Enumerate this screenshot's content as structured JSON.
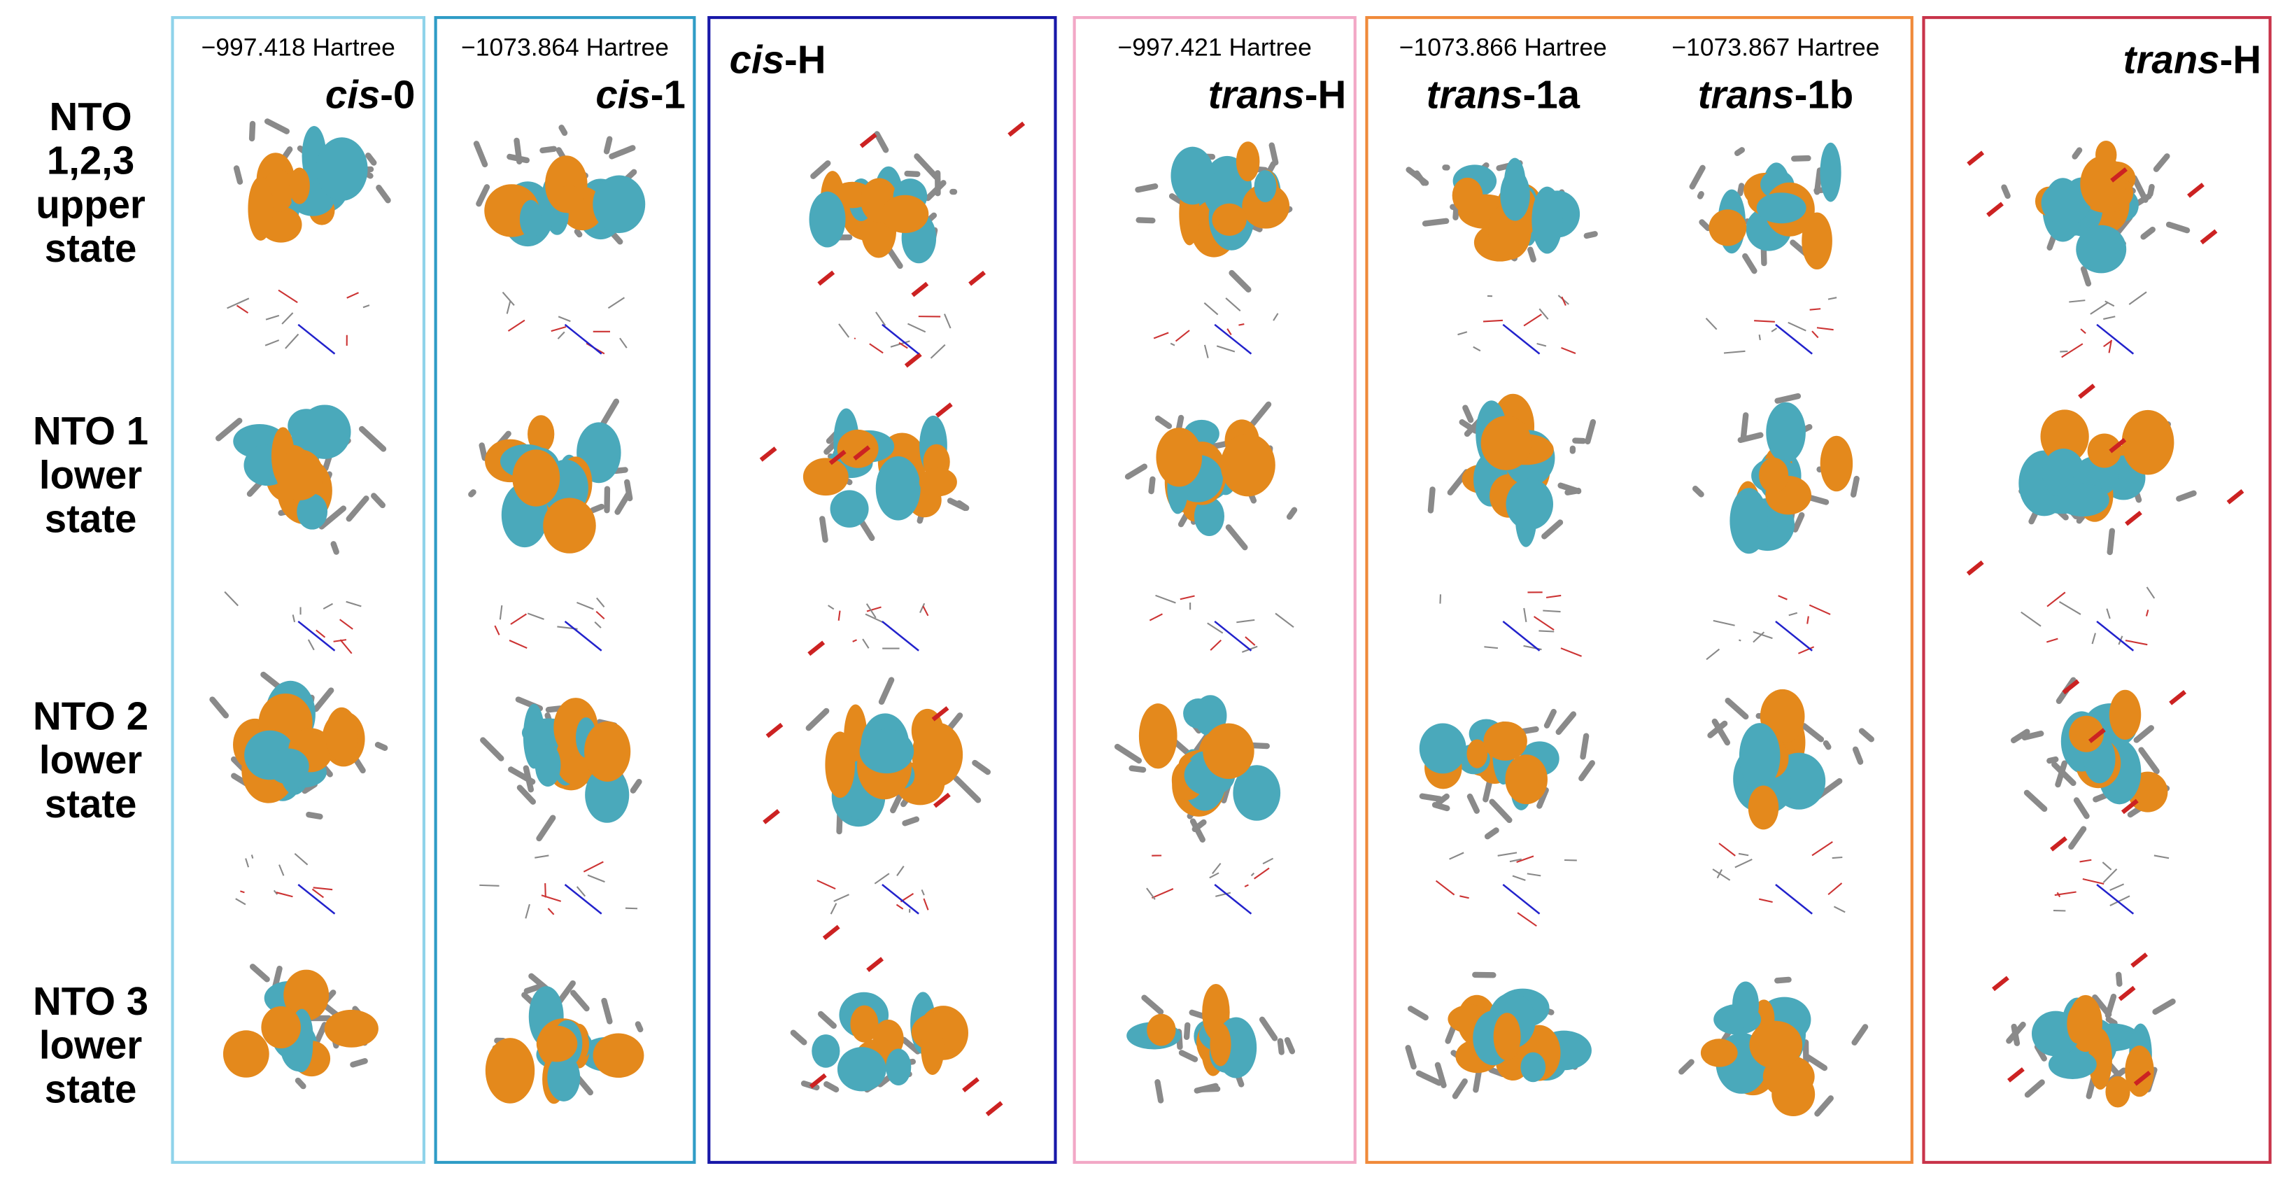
{
  "rows": [
    {
      "lines": [
        "NTO",
        "1,2,3",
        "upper",
        "state"
      ]
    },
    {
      "lines": [
        "NTO 1",
        "lower",
        "state"
      ]
    },
    {
      "lines": [
        "NTO 2",
        "lower",
        "state"
      ]
    },
    {
      "lines": [
        "NTO 3",
        "lower",
        "state"
      ]
    }
  ],
  "panels": [
    {
      "columns": [
        {
          "energy": "−997.418 Hartree",
          "prefix": "cis",
          "suffix": "-0"
        }
      ]
    },
    {
      "columns": [
        {
          "energy": "−1073.864 Hartree",
          "prefix": "cis",
          "suffix": "-1"
        }
      ]
    },
    {
      "columns": [
        {
          "prefix": "cis",
          "suffix": "-H"
        }
      ]
    },
    {
      "columns": [
        {
          "energy": "−997.421 Hartree",
          "prefix": "trans",
          "suffix": "-H"
        }
      ]
    },
    {
      "columns": [
        {
          "energy": "−1073.866 Hartree",
          "prefix": "trans",
          "suffix": "-1a"
        },
        {
          "energy": "−1073.867 Hartree",
          "prefix": "trans",
          "suffix": "-1b"
        }
      ]
    },
    {
      "columns": [
        {
          "prefix": "trans",
          "suffix": "-H"
        }
      ]
    }
  ]
}
